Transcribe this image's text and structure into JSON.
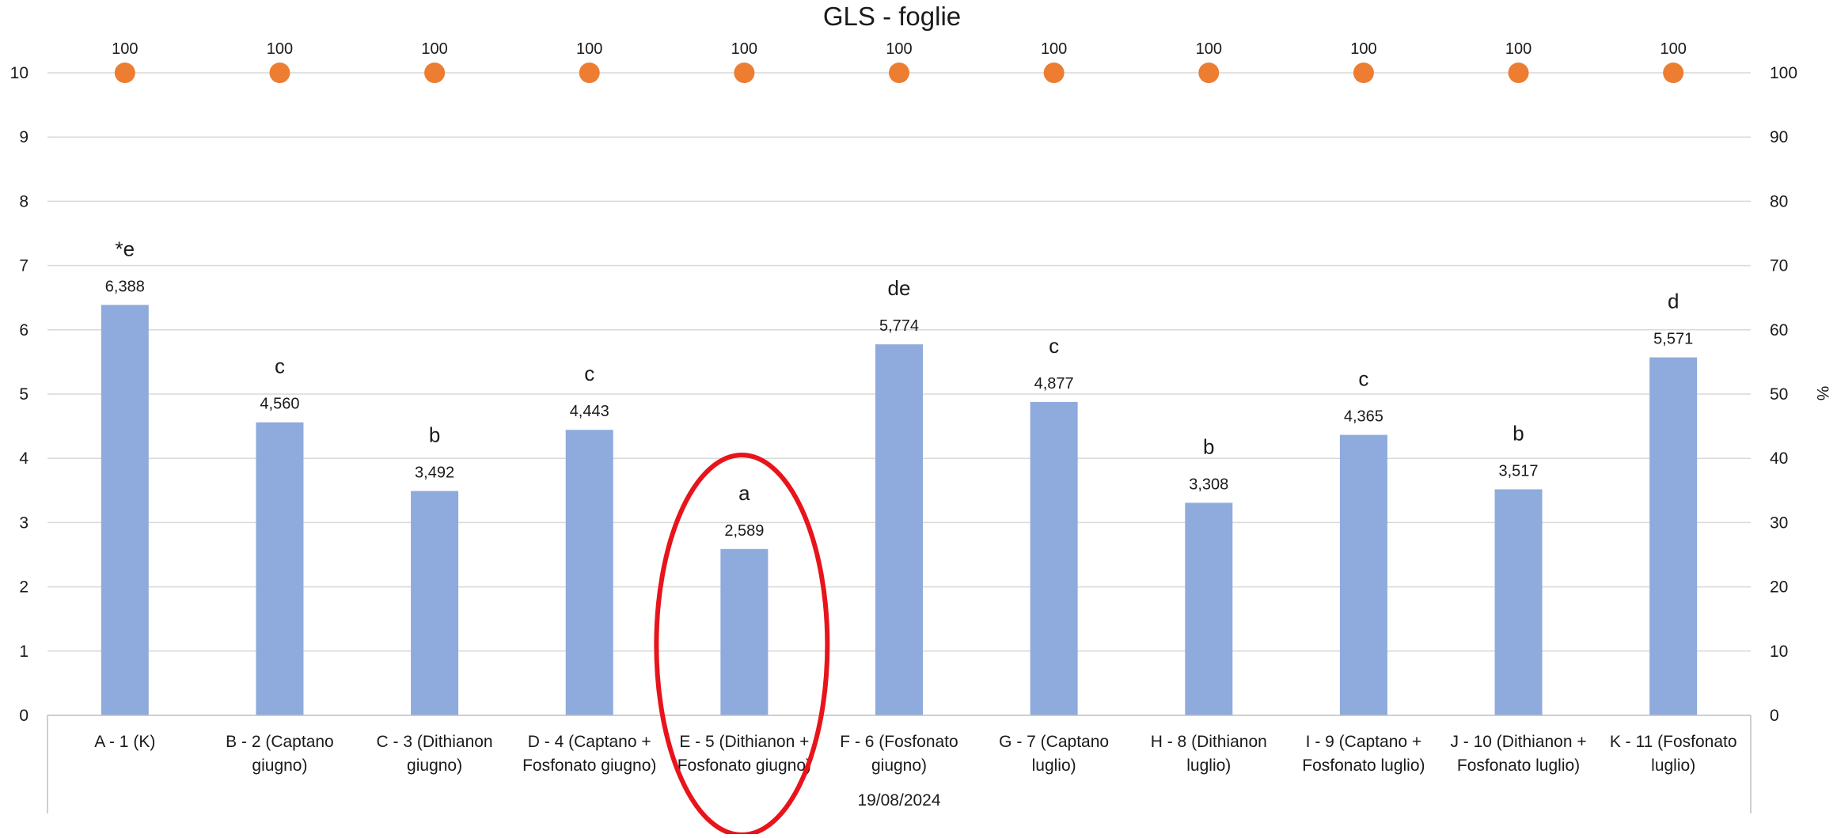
{
  "chart_data": {
    "type": "bar",
    "title": "GLS - foglie",
    "categories": [
      "A - 1 (K)",
      "B - 2 (Captano giugno)",
      "C - 3 (Dithianon giugno)",
      "D - 4 (Captano + Fosfonato giugno)",
      "E - 5 (Dithianon + Fosfonato giugno)",
      "F - 6 (Fosfonato giugno)",
      "G - 7 (Captano luglio)",
      "H - 8 (Dithianon luglio)",
      "I - 9 (Captano + Fosfonato luglio)",
      "J - 10 (Dithianon + Fosfonato luglio)",
      "K - 11 (Fosfonato luglio)"
    ],
    "category_lines": [
      [
        "A - 1 (K)"
      ],
      [
        "B - 2 (Captano",
        "giugno)"
      ],
      [
        "C - 3 (Dithianon",
        "giugno)"
      ],
      [
        "D - 4 (Captano +",
        "Fosfonato giugno)"
      ],
      [
        "E - 5 (Dithianon +",
        "Fosfonato giugno)"
      ],
      [
        "F - 6 (Fosfonato",
        "giugno)"
      ],
      [
        "G - 7 (Captano",
        "luglio)"
      ],
      [
        "H - 8 (Dithianon",
        "luglio)"
      ],
      [
        "I - 9 (Captano +",
        "Fosfonato luglio)"
      ],
      [
        "J - 10 (Dithianon +",
        "Fosfonato luglio)"
      ],
      [
        "K - 11 (Fosfonato",
        "luglio)"
      ]
    ],
    "group_label": "19/08/2024",
    "series": [
      {
        "type": "bar",
        "axis": "left",
        "color": "#8faadc",
        "values": [
          6.388,
          4.56,
          3.492,
          4.443,
          2.589,
          5.774,
          4.877,
          3.308,
          4.365,
          3.517,
          5.571
        ],
        "value_labels": [
          "6,388",
          "4,560",
          "3,492",
          "4,443",
          "2,589",
          "5,774",
          "4,877",
          "3,308",
          "4,365",
          "3,517",
          "5,571"
        ],
        "significance_letters": [
          "*e",
          "c",
          "b",
          "c",
          "a",
          "de",
          "c",
          "b",
          "c",
          "b",
          "d"
        ]
      },
      {
        "type": "scatter",
        "axis": "right",
        "color": "#ed7d31",
        "values": [
          100,
          100,
          100,
          100,
          100,
          100,
          100,
          100,
          100,
          100,
          100
        ],
        "value_labels": [
          "100",
          "100",
          "100",
          "100",
          "100",
          "100",
          "100",
          "100",
          "100",
          "100",
          "100"
        ]
      }
    ],
    "y_left": {
      "range": [
        0,
        10
      ],
      "ticks": [
        "0",
        "1",
        "2",
        "3",
        "4",
        "5",
        "6",
        "7",
        "8",
        "9",
        "10"
      ]
    },
    "y_right": {
      "label": "%",
      "range": [
        0,
        100
      ],
      "ticks": [
        "0",
        "10",
        "20",
        "30",
        "40",
        "50",
        "60",
        "70",
        "80",
        "90",
        "100"
      ]
    },
    "grid": true,
    "legend": "none",
    "highlight": {
      "type": "ellipse",
      "category_index": 4,
      "color": "#e8141b"
    }
  }
}
